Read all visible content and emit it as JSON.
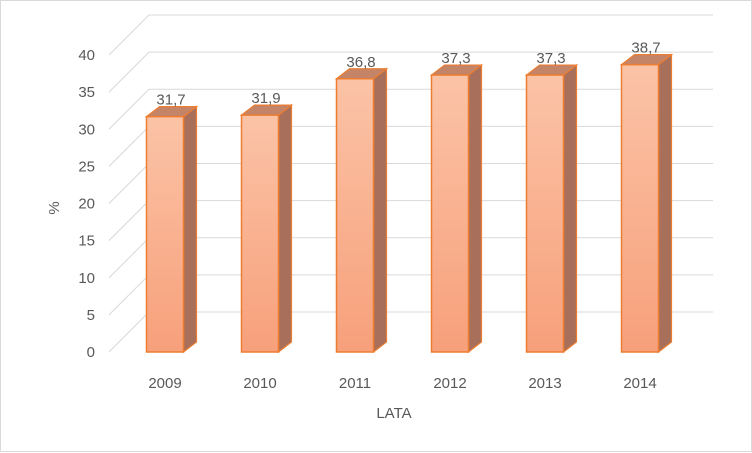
{
  "chart_data": {
    "type": "bar",
    "style": "3d-clustered-column",
    "categories": [
      "2009",
      "2010",
      "2011",
      "2012",
      "2013",
      "2014"
    ],
    "series": [
      {
        "values": [
          31.7,
          31.9,
          36.8,
          37.3,
          37.3,
          38.7
        ]
      }
    ],
    "data_labels": [
      "31,7",
      "31,9",
      "36,8",
      "37,3",
      "37,3",
      "38,7"
    ],
    "xlabel": "LATA",
    "ylabel": "%",
    "ylim": [
      0,
      40
    ],
    "yticks": [
      "0",
      "5",
      "10",
      "15",
      "20",
      "25",
      "30",
      "35",
      "40"
    ],
    "grid": true,
    "legend": "none",
    "colors": {
      "bar_front_top": "#fbc3a6",
      "bar_front_bottom": "#f7a07b",
      "bar_side": "#a8705a",
      "bar_top": "#c48468",
      "bar_edge": "#ed7d31",
      "grid": "#d9d9d9",
      "text": "#595959"
    }
  }
}
